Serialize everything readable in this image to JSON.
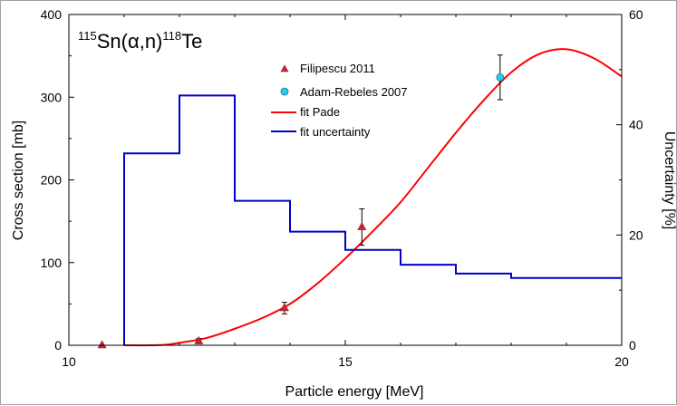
{
  "chart_data": {
    "type": "line",
    "title": "",
    "reaction": {
      "target_mass": "115",
      "target": "Sn",
      "channel": "(α,n)",
      "product_mass": "118",
      "product": "Te"
    },
    "xlabel": "Particle energy [MeV]",
    "ylabel": "Cross section [mb]",
    "y2label": "Uncertainty [%]",
    "xlim": [
      10,
      20
    ],
    "ylim": [
      0,
      400
    ],
    "y2lim": [
      0,
      60
    ],
    "x_ticks": [
      "10",
      "15",
      "20"
    ],
    "y_ticks": [
      "0",
      "100",
      "200",
      "300",
      "400"
    ],
    "y2_ticks": [
      "0",
      "20",
      "40",
      "60"
    ],
    "legend": {
      "position": "top-center",
      "entries": [
        "Filipescu 2011",
        "Adam-Rebeles 2007",
        "fit Pade",
        "fit uncertainty"
      ]
    },
    "series": [
      {
        "name": "Filipescu 2011",
        "marker": "triangle",
        "color": "#cc2233",
        "points": [
          {
            "x": 10.6,
            "y": 0,
            "err": 0
          },
          {
            "x": 12.35,
            "y": 5,
            "err": 3
          },
          {
            "x": 13.9,
            "y": 45,
            "err": 7
          },
          {
            "x": 15.3,
            "y": 143,
            "err": 22
          }
        ]
      },
      {
        "name": "Adam-Rebeles 2007",
        "marker": "circle",
        "color": "#22ccee",
        "points": [
          {
            "x": 17.8,
            "y": 324,
            "err": 27
          }
        ]
      },
      {
        "name": "fit Pade",
        "style": "line",
        "color": "#ff0000",
        "points": [
          {
            "x": 11.0,
            "y": 0
          },
          {
            "x": 11.5,
            "y": 0
          },
          {
            "x": 11.8,
            "y": 1
          },
          {
            "x": 12.0,
            "y": 3
          },
          {
            "x": 12.5,
            "y": 9
          },
          {
            "x": 13.0,
            "y": 20
          },
          {
            "x": 13.5,
            "y": 33
          },
          {
            "x": 14.0,
            "y": 50
          },
          {
            "x": 14.5,
            "y": 75
          },
          {
            "x": 15.0,
            "y": 105
          },
          {
            "x": 15.5,
            "y": 138
          },
          {
            "x": 16.0,
            "y": 173
          },
          {
            "x": 16.5,
            "y": 215
          },
          {
            "x": 17.0,
            "y": 257
          },
          {
            "x": 17.5,
            "y": 296
          },
          {
            "x": 18.0,
            "y": 330
          },
          {
            "x": 18.5,
            "y": 352
          },
          {
            "x": 19.0,
            "y": 358
          },
          {
            "x": 19.5,
            "y": 347
          },
          {
            "x": 20.0,
            "y": 325
          }
        ]
      },
      {
        "name": "fit uncertainty",
        "style": "step",
        "axis": "right",
        "color": "#0000cc",
        "edges": [
          11,
          12,
          13,
          14,
          15,
          16,
          17,
          18,
          20
        ],
        "values": [
          34.8,
          45.3,
          26.2,
          20.6,
          17.3,
          14.6,
          13.0,
          12.2
        ]
      }
    ]
  }
}
